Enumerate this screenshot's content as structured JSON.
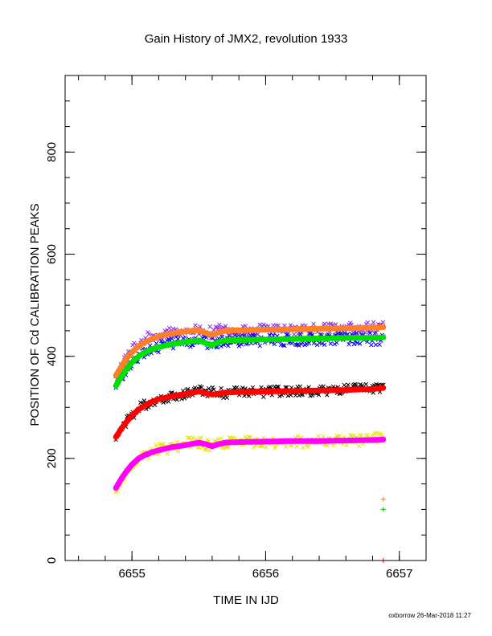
{
  "chart_data": {
    "type": "scatter",
    "title": "Gain History of JMX2, revolution 1933",
    "xlabel": "TIME IN IJD",
    "ylabel": "POSITION OF Cd CALIBRATION PEAKS",
    "footer": "oxborrow 26-Mar-2018 11:27",
    "xlim": [
      6654.5,
      6657.2
    ],
    "ylim": [
      0,
      950
    ],
    "x_ticks": [
      6655,
      6656,
      6657
    ],
    "x_tick_labels": [
      "6655",
      "6656",
      "6657"
    ],
    "x_minor_step": 0.2,
    "y_ticks": [
      0,
      200,
      400,
      600,
      800
    ],
    "y_tick_labels": [
      "0",
      "200",
      "400",
      "600",
      "800"
    ],
    "y_minor_step": 50,
    "grid": false,
    "scatter_series": [
      {
        "color": "#8a2be2",
        "marker": "x",
        "t": [
          6654.88,
          6654.95,
          6655.02,
          6655.08,
          6655.15,
          6655.22,
          6655.3,
          6655.4,
          6655.5,
          6655.58,
          6655.66,
          6655.75,
          6655.9,
          6656.1,
          6656.3,
          6656.5,
          6656.7,
          6656.88
        ],
        "y": [
          360,
          395,
          418,
          432,
          438,
          444,
          447,
          449,
          450,
          446,
          450,
          451,
          451,
          452,
          452,
          453,
          454,
          456
        ],
        "spread": 12
      },
      {
        "color": "#0000ee",
        "marker": "x",
        "t": [
          6654.88,
          6654.95,
          6655.02,
          6655.08,
          6655.15,
          6655.22,
          6655.3,
          6655.4,
          6655.5,
          6655.58,
          6655.66,
          6655.75,
          6655.9,
          6656.1,
          6656.3,
          6656.5,
          6656.7,
          6656.88
        ],
        "y": [
          340,
          372,
          395,
          408,
          416,
          421,
          425,
          428,
          430,
          424,
          429,
          430,
          431,
          432,
          433,
          434,
          435,
          432
        ],
        "spread": 12
      },
      {
        "color": "#000000",
        "marker": "x",
        "t": [
          6654.88,
          6654.95,
          6655.02,
          6655.08,
          6655.15,
          6655.22,
          6655.3,
          6655.4,
          6655.5,
          6655.58,
          6655.66,
          6655.75,
          6655.9,
          6656.1,
          6656.3,
          6656.5,
          6656.7,
          6656.88
        ],
        "y": [
          240,
          268,
          290,
          303,
          312,
          318,
          323,
          327,
          333,
          330,
          328,
          329,
          330,
          331,
          332,
          334,
          336,
          338
        ],
        "spread": 10
      },
      {
        "color": "#e6e600",
        "marker": "x",
        "t": [
          6654.88,
          6654.95,
          6655.02,
          6655.08,
          6655.15,
          6655.22,
          6655.3,
          6655.4,
          6655.5,
          6655.58,
          6655.66,
          6655.75,
          6655.9,
          6656.1,
          6656.3,
          6656.5,
          6656.7,
          6656.88
        ],
        "y": [
          140,
          170,
          190,
          203,
          212,
          218,
          222,
          228,
          232,
          226,
          228,
          232,
          230,
          231,
          233,
          235,
          236,
          240
        ],
        "spread": 12
      }
    ],
    "curves": [
      {
        "color": "#ff7f27",
        "t": [
          6654.88,
          6654.92,
          6654.96,
          6655.0,
          6655.05,
          6655.1,
          6655.15,
          6655.2,
          6655.3,
          6655.4,
          6655.5,
          6655.55,
          6655.6,
          6655.65,
          6655.7,
          6655.8,
          6656.0,
          6656.2,
          6656.4,
          6656.6,
          6656.8,
          6656.88
        ],
        "y": [
          362,
          380,
          396,
          408,
          420,
          428,
          434,
          439,
          445,
          449,
          451,
          446,
          442,
          447,
          450,
          451,
          452,
          453,
          454,
          455,
          456,
          457
        ]
      },
      {
        "color": "#00e000",
        "t": [
          6654.88,
          6654.92,
          6654.96,
          6655.0,
          6655.05,
          6655.1,
          6655.15,
          6655.2,
          6655.3,
          6655.4,
          6655.5,
          6655.55,
          6655.6,
          6655.65,
          6655.7,
          6655.8,
          6656.0,
          6656.2,
          6656.4,
          6656.6,
          6656.8,
          6656.88
        ],
        "y": [
          342,
          360,
          375,
          388,
          400,
          408,
          414,
          418,
          424,
          428,
          431,
          426,
          422,
          428,
          431,
          432,
          433,
          434,
          435,
          436,
          436,
          437
        ]
      },
      {
        "color": "#ff0000",
        "t": [
          6654.88,
          6654.92,
          6654.96,
          6655.0,
          6655.05,
          6655.1,
          6655.15,
          6655.2,
          6655.3,
          6655.4,
          6655.5,
          6655.55,
          6655.6,
          6655.65,
          6655.7,
          6655.8,
          6656.0,
          6656.2,
          6656.4,
          6656.6,
          6656.8,
          6656.88
        ],
        "y": [
          242,
          258,
          272,
          284,
          296,
          304,
          311,
          316,
          322,
          326,
          331,
          328,
          325,
          327,
          329,
          330,
          331,
          332,
          333,
          334,
          336,
          338
        ]
      },
      {
        "color": "#ff00ff",
        "t": [
          6654.88,
          6654.92,
          6654.96,
          6655.0,
          6655.05,
          6655.1,
          6655.15,
          6655.2,
          6655.3,
          6655.4,
          6655.5,
          6655.55,
          6655.6,
          6655.65,
          6655.7,
          6655.8,
          6656.0,
          6656.2,
          6656.4,
          6656.6,
          6656.8,
          6656.88
        ],
        "y": [
          142,
          160,
          175,
          188,
          200,
          207,
          212,
          216,
          222,
          226,
          231,
          228,
          224,
          228,
          231,
          232,
          233,
          234,
          234,
          235,
          236,
          237
        ]
      }
    ],
    "plus_markers": [
      {
        "color": "#ff7f27",
        "t": 6656.88,
        "y": 120
      },
      {
        "color": "#00c000",
        "t": 6656.88,
        "y": 100
      },
      {
        "color": "#ff0000",
        "t": 6656.88,
        "y": 0
      }
    ]
  }
}
